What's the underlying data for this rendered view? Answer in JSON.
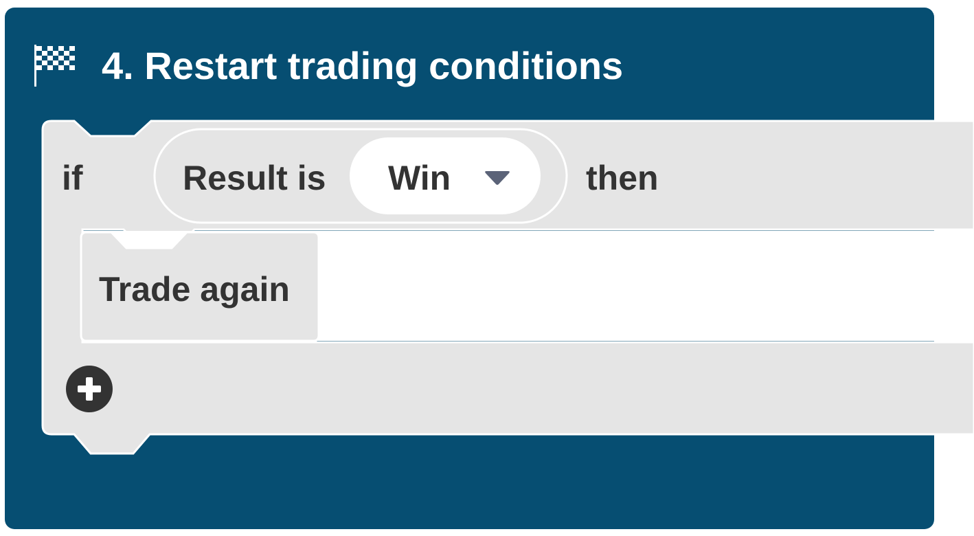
{
  "block": {
    "title": "4. Restart trading conditions",
    "icon": "checkered-flag-icon"
  },
  "condition": {
    "if_label": "if",
    "result_label": "Result is",
    "dropdown_value": "Win",
    "dropdown_icon": "dropdown-triangle-icon",
    "then_label": "then"
  },
  "inner_block": {
    "label": "Trade again"
  },
  "add_button": {
    "icon": "plus-circle-icon"
  },
  "colors": {
    "header_bg": "#064e72",
    "block_bg": "#e5e5e5",
    "pill_bg": "#e5e5e5",
    "dropdown_bg": "#ffffff",
    "text_dark": "#333333",
    "arrow": "#5b6378"
  }
}
